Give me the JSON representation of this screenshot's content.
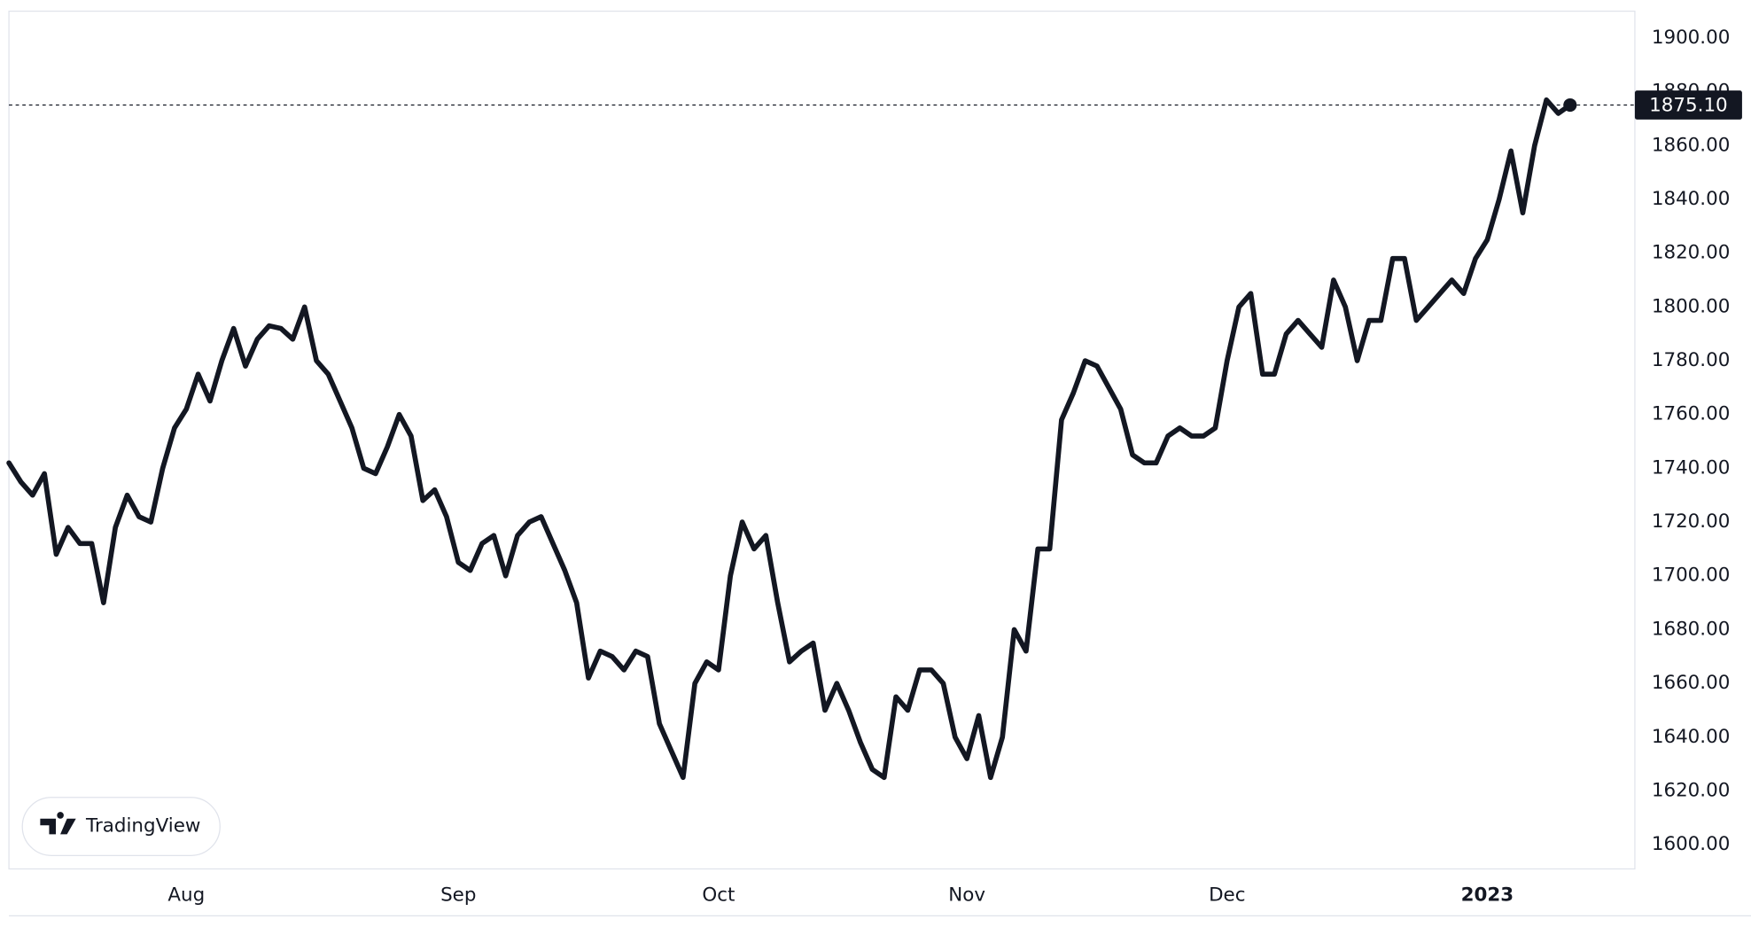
{
  "chart_data": {
    "type": "line",
    "watermark": "TradingView",
    "categories": [
      null,
      null,
      null,
      null,
      null,
      null,
      null,
      null,
      null,
      null,
      null,
      null,
      null,
      null,
      null,
      "Aug",
      null,
      null,
      null,
      null,
      null,
      null,
      null,
      null,
      null,
      null,
      null,
      null,
      null,
      null,
      null,
      null,
      null,
      null,
      null,
      null,
      null,
      null,
      "Sep",
      null,
      null,
      null,
      null,
      null,
      null,
      null,
      null,
      null,
      null,
      null,
      null,
      null,
      null,
      null,
      null,
      null,
      null,
      null,
      null,
      null,
      "Oct",
      null,
      null,
      null,
      null,
      null,
      null,
      null,
      null,
      null,
      null,
      null,
      null,
      null,
      null,
      null,
      null,
      null,
      null,
      null,
      null,
      "Nov",
      null,
      null,
      null,
      null,
      null,
      null,
      null,
      null,
      null,
      null,
      null,
      null,
      null,
      null,
      null,
      null,
      null,
      null,
      null,
      null,
      null,
      "Dec",
      null,
      null,
      null,
      null,
      null,
      null,
      null,
      null,
      null,
      null,
      null,
      null,
      null,
      null,
      null,
      null,
      null,
      null,
      null,
      null,
      null,
      "2023",
      null,
      null,
      null,
      null,
      null,
      null,
      null
    ],
    "series": [
      {
        "color": "#131722",
        "values": [
          1742,
          1735,
          1730,
          1738,
          1708,
          1718,
          1712,
          1712,
          1690,
          1718,
          1730,
          1722,
          1720,
          1740,
          1755,
          1762,
          1775,
          1765,
          1780,
          1792,
          1778,
          1788,
          1793,
          1792,
          1788,
          1800,
          1780,
          1775,
          1765,
          1755,
          1740,
          1738,
          1748,
          1760,
          1752,
          1728,
          1732,
          1722,
          1705,
          1702,
          1712,
          1715,
          1700,
          1715,
          1720,
          1722,
          1712,
          1702,
          1690,
          1662,
          1672,
          1670,
          1665,
          1672,
          1670,
          1645,
          1635,
          1625,
          1660,
          1668,
          1665,
          1700,
          1720,
          1710,
          1715,
          1690,
          1668,
          1672,
          1675,
          1650,
          1660,
          1650,
          1638,
          1628,
          1625,
          1655,
          1650,
          1665,
          1665,
          1660,
          1640,
          1632,
          1648,
          1625,
          1640,
          1680,
          1672,
          1710,
          1710,
          1758,
          1768,
          1780,
          1778,
          1770,
          1762,
          1745,
          1742,
          1742,
          1752,
          1755,
          1752,
          1752,
          1755,
          1780,
          1800,
          1805,
          1775,
          1775,
          1790,
          1795,
          1790,
          1785,
          1810,
          1800,
          1780,
          1795,
          1795,
          1818,
          1818,
          1795,
          1800,
          1805,
          1810,
          1805,
          1818,
          1825,
          1840,
          1858,
          1835,
          1860,
          1877,
          1872,
          1875.1
        ]
      }
    ],
    "last_price": {
      "value": 1875.1,
      "label": "1875.10"
    },
    "ylim": [
      1591,
      1910
    ],
    "yticks": [
      {
        "value": 1600,
        "label": "1600.00"
      },
      {
        "value": 1620,
        "label": "1620.00"
      },
      {
        "value": 1640,
        "label": "1640.00"
      },
      {
        "value": 1660,
        "label": "1660.00"
      },
      {
        "value": 1680,
        "label": "1680.00"
      },
      {
        "value": 1700,
        "label": "1700.00"
      },
      {
        "value": 1720,
        "label": "1720.00"
      },
      {
        "value": 1740,
        "label": "1740.00"
      },
      {
        "value": 1760,
        "label": "1760.00"
      },
      {
        "value": 1780,
        "label": "1780.00"
      },
      {
        "value": 1800,
        "label": "1800.00"
      },
      {
        "value": 1820,
        "label": "1820.00"
      },
      {
        "value": 1840,
        "label": "1840.00"
      },
      {
        "value": 1860,
        "label": "1860.00"
      },
      {
        "value": 1880,
        "label": "1880.00"
      },
      {
        "value": 1900,
        "label": "1900.00"
      }
    ],
    "grid": false
  }
}
